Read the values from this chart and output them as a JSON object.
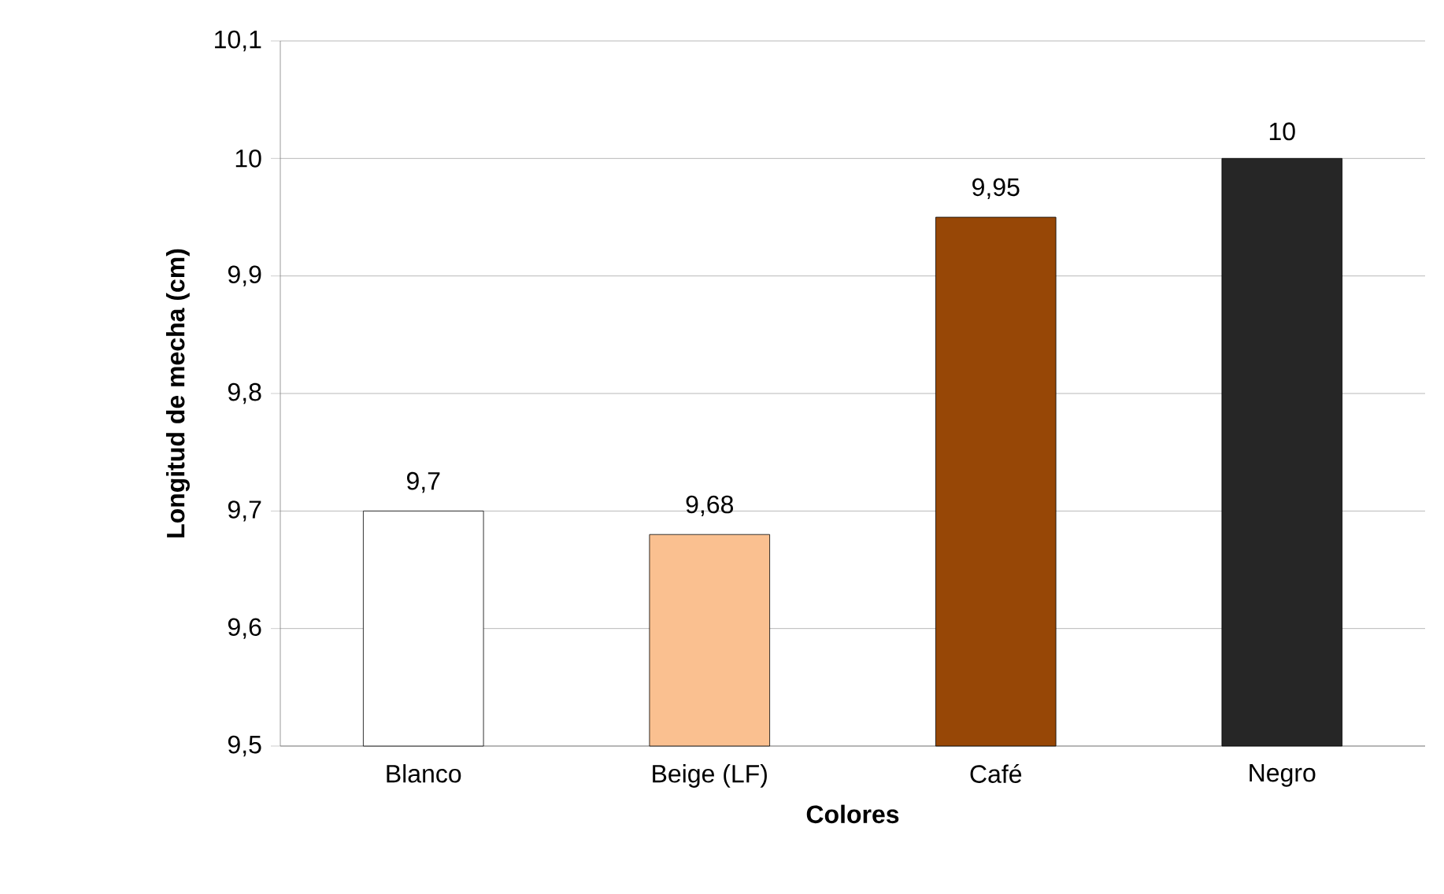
{
  "chart_data": {
    "type": "bar",
    "xlabel": "Colores",
    "ylabel": "Longitud de mecha (cm)",
    "categories": [
      "Blanco",
      "Beige (LF)",
      "Café",
      "Negro"
    ],
    "values": [
      9.7,
      9.68,
      9.95,
      10
    ],
    "value_labels": [
      "9,7",
      "9,68",
      "9,95",
      "10"
    ],
    "colors": [
      "#ffffff",
      "#fac090",
      "#974706",
      "#262626"
    ],
    "ylim": [
      9.5,
      10.1
    ],
    "yticks": [
      {
        "value": 9.5,
        "label": "9,5"
      },
      {
        "value": 9.6,
        "label": "9,6"
      },
      {
        "value": 9.7,
        "label": "9,7"
      },
      {
        "value": 9.8,
        "label": "9,8"
      },
      {
        "value": 9.9,
        "label": "9,9"
      },
      {
        "value": 10,
        "label": "10"
      },
      {
        "value": 10.1,
        "label": "10,1"
      }
    ],
    "grid": "y"
  }
}
